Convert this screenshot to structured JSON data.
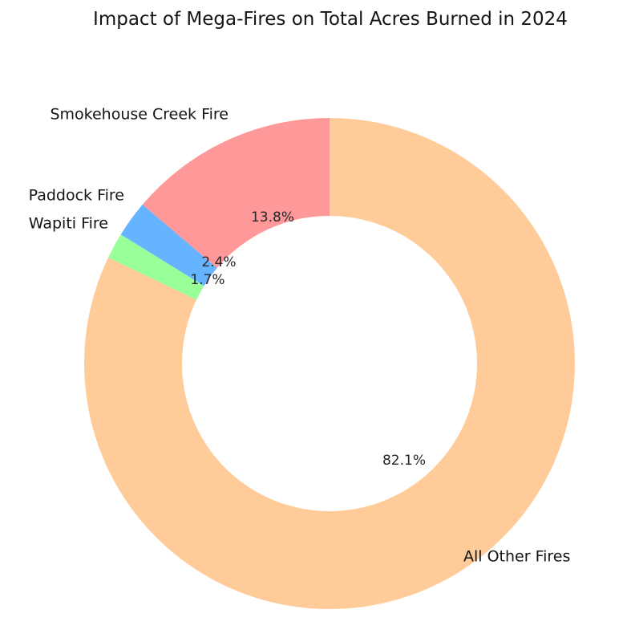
{
  "chart_data": {
    "type": "pie",
    "subtype": "donut",
    "title": "Impact of Mega-Fires on Total Acres Burned in 2024",
    "categories": [
      "Smokehouse Creek Fire",
      "Paddock Fire",
      "Wapiti Fire",
      "All Other Fires"
    ],
    "values": [
      13.8,
      2.4,
      1.7,
      82.1
    ],
    "unit": "percent",
    "labels_autopct": [
      "13.8%",
      "2.4%",
      "1.7%",
      "82.1%"
    ],
    "colors": [
      "#ff9999",
      "#66b3ff",
      "#99ff99",
      "#ffcc99"
    ],
    "start_angle": 90,
    "direction": "counterclockwise",
    "donut_hole_ratio": 0.6,
    "legend": "none",
    "background": "#ffffff",
    "text_color": "#141414"
  }
}
